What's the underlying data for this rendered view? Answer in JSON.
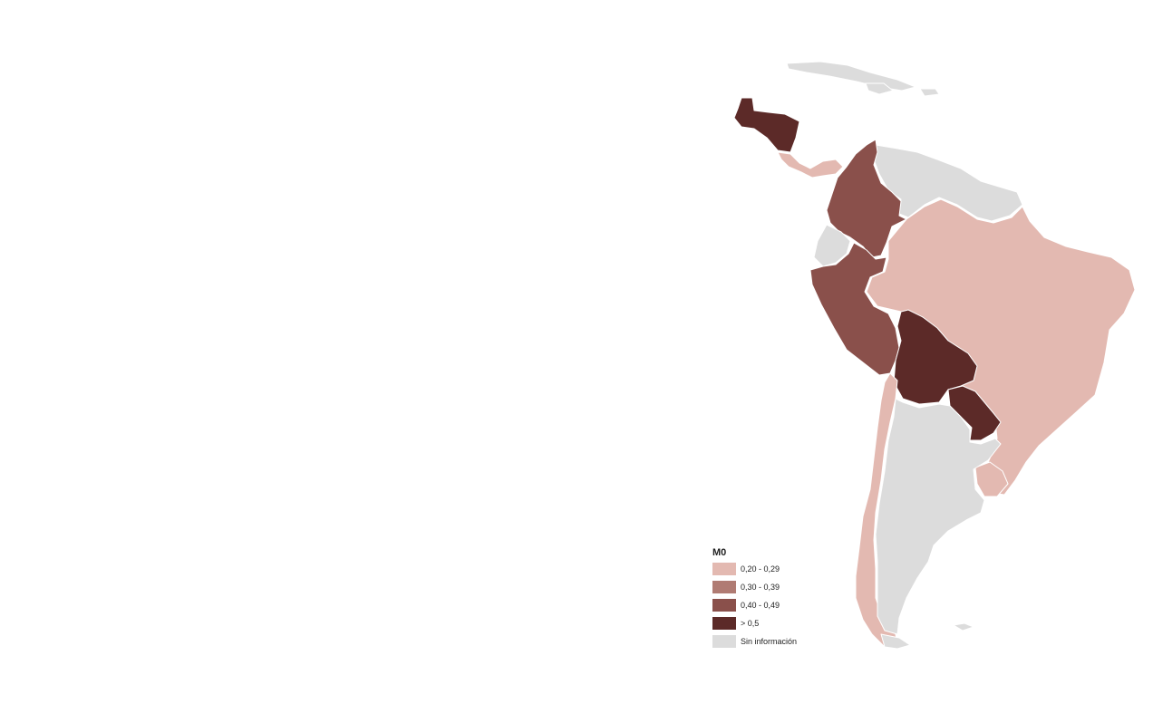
{
  "legend": {
    "title": "M0",
    "classes": [
      {
        "label": "0,20 - 0,29",
        "color": "#e3b9b1"
      },
      {
        "label": "0,30 - 0,39",
        "color": "#b07b73"
      },
      {
        "label": "0,40 - 0,49",
        "color": "#8a504b"
      },
      {
        "label": "> 0,5",
        "color": "#5c2a28"
      },
      {
        "label": "Sin información",
        "color": "#dcdcdc"
      }
    ]
  },
  "regions": [
    {
      "id": "guatemala-honduras",
      "class": "> 0,5"
    },
    {
      "id": "costa-rica-panama",
      "class": "0,20 - 0,29"
    },
    {
      "id": "colombia",
      "class": "0,40 - 0,49"
    },
    {
      "id": "venezuela-guianas",
      "class": "Sin información"
    },
    {
      "id": "ecuador",
      "class": "Sin información"
    },
    {
      "id": "peru",
      "class": "0,40 - 0,49"
    },
    {
      "id": "brazil",
      "class": "0,20 - 0,29"
    },
    {
      "id": "bolivia",
      "class": "> 0,5"
    },
    {
      "id": "paraguay",
      "class": "> 0,5"
    },
    {
      "id": "chile",
      "class": "0,20 - 0,29"
    },
    {
      "id": "argentina",
      "class": "Sin información"
    },
    {
      "id": "uruguay",
      "class": "0,20 - 0,29"
    },
    {
      "id": "cuba-caribbean",
      "class": "Sin información"
    }
  ],
  "colors": {
    "border": "#ffffff",
    "background": "#ffffff"
  }
}
